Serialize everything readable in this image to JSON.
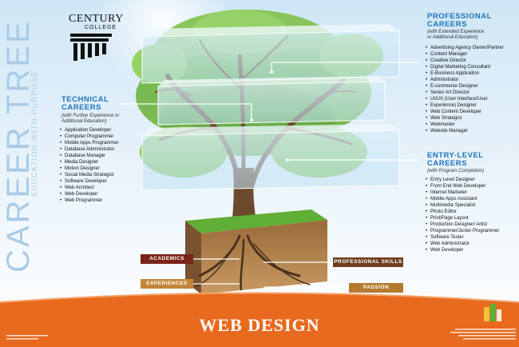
{
  "vertical_title": {
    "main": "CAREER TREE",
    "tagline": "EDUCATION WITH PURPOSE"
  },
  "logo": {
    "name": "CENTURY",
    "sub": "COLLEGE"
  },
  "technical": {
    "title_line1": "TECHNICAL",
    "title_line2": "CAREERS",
    "sub_line1": "(with Further Experience or",
    "sub_line2": "Additional Education)",
    "items": [
      "Application Developer",
      "Computer Programmer",
      "Mobile Apps Programmer",
      "Database Administrator",
      "Database Manager",
      "Media Designer",
      "Motion Designer",
      "Social Media Strategist",
      "Software Developer",
      "Web Architect",
      "Web Developer",
      "Web Programmer"
    ]
  },
  "professional": {
    "title_line1": "PROFESSIONAL",
    "title_line2": "CAREERS",
    "sub_line1": "(with Extended Experience",
    "sub_line2": "or Additional Education)",
    "items": [
      "Advertising Agency Owner/Partner",
      "Content Manager",
      "Creative Director",
      "Digital Marketing Consultant",
      "E-Business Application",
      "Administrator",
      "E-commerce Designer",
      "Senior Art Director",
      "UI/UX (User Interface/User",
      "Experience) Designer",
      "Web Content Developer",
      "Web Strategist",
      "Webmaster",
      "Website Manager"
    ]
  },
  "entry": {
    "title_line1": "ENTRY-LEVEL",
    "title_line2": "CAREERS",
    "sub_line1": "(with Program Completion)",
    "items": [
      "Entry Level Designer",
      "Front End Web Developer",
      "Internet Marketer",
      "Mobile Apps Assistant",
      "Multimedia Specialist",
      "Photo Editor",
      "Print/Page Layout",
      "Production Designer/ Artist",
      "Programmer/Junior Programmer",
      "Software Tester",
      "Web Administrator",
      "Web Developer"
    ]
  },
  "roots": {
    "academics": "ACADEMICS",
    "experiences": "EXPERIENCES",
    "professional_skills": "PROFESSIONAL SKILLS",
    "passion": "PASSION"
  },
  "program_title": "WEB DESIGN",
  "colors": {
    "accent_blue": "#1f74b8",
    "band_orange": "#e86a1f",
    "title_light_blue": "#a9cbe6",
    "leaf_green": "#6fb43f",
    "trunk_brown": "#6b4a2e"
  }
}
